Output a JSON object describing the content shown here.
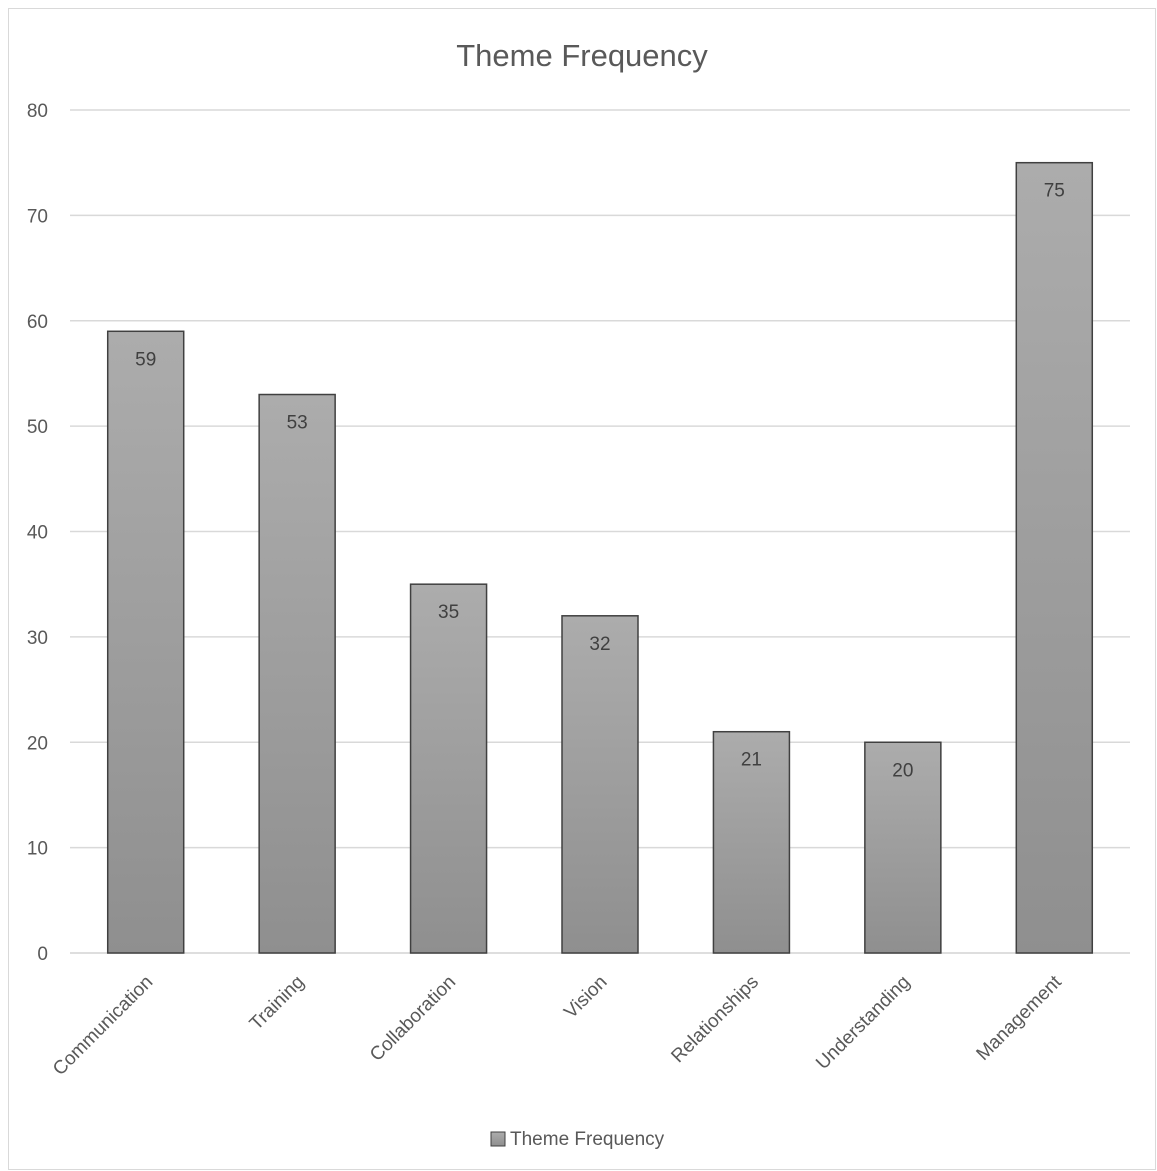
{
  "chart_data": {
    "type": "bar",
    "title": "Theme Frequency",
    "xlabel": "",
    "ylabel": "",
    "categories": [
      "Communication",
      "Training",
      "Collaboration",
      "Vision",
      "Relationships",
      "Understanding",
      "Management"
    ],
    "series": [
      {
        "name": "Theme Frequency",
        "values": [
          59,
          53,
          35,
          32,
          21,
          20,
          75
        ]
      }
    ],
    "ylim": [
      0,
      80
    ],
    "yticks": [
      0,
      10,
      20,
      30,
      40,
      50,
      60,
      70,
      80
    ],
    "grid": true,
    "legend_position": "bottom",
    "data_labels": true,
    "colors": {
      "bar_top": "#acacac",
      "bar_bottom": "#8f8f8f",
      "bar_border": "#404040",
      "grid": "#d9d9d9",
      "text": "#595959"
    }
  }
}
